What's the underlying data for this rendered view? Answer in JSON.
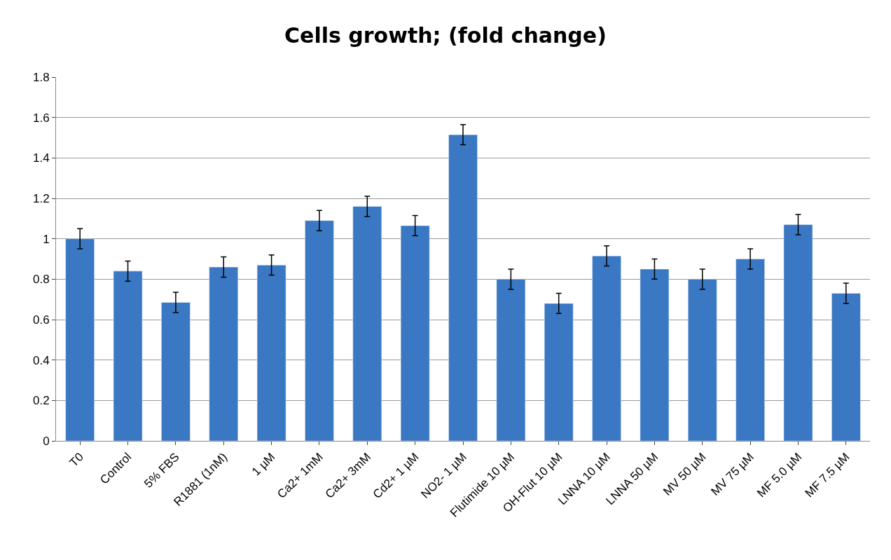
{
  "chart_data": {
    "type": "bar",
    "title": "Cells growth; (fold change)",
    "categories": [
      "T0",
      "Control",
      "5% FBS",
      "R1881 (1nM)",
      "1 µM",
      "Ca2+ 1mM",
      "Ca2+ 3mM",
      "Cd2+ 1 µM",
      "NO2- 1 µM",
      "Flutimide 10 µM",
      "OH-Flut 10 µM",
      "LNNA 10 µM",
      "LNNA 50 µM",
      "MV 50 µM",
      "MV 75 µM",
      "MF 5.0 µM",
      "MF 7.5 µM"
    ],
    "values": [
      1.0,
      0.84,
      0.685,
      0.86,
      0.87,
      1.09,
      1.16,
      1.065,
      1.515,
      0.8,
      0.68,
      0.915,
      0.85,
      0.8,
      0.9,
      1.07,
      0.73
    ],
    "errors": [
      0.05,
      0.05,
      0.05,
      0.05,
      0.05,
      0.05,
      0.05,
      0.05,
      0.05,
      0.05,
      0.05,
      0.05,
      0.05,
      0.05,
      0.05,
      0.05,
      0.05
    ],
    "color": "#3a78c4",
    "ylim": [
      0,
      1.8
    ],
    "yticks": [
      0,
      0.2,
      0.4,
      0.6,
      0.8,
      1,
      1.2,
      1.4,
      1.6,
      1.8
    ],
    "grid": "y"
  }
}
